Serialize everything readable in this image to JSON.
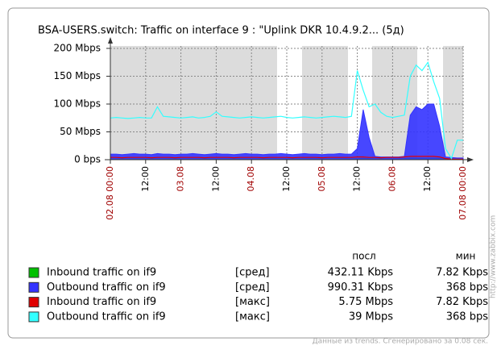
{
  "chart_data": {
    "type": "line",
    "title": "BSA-USERS.switch: Traffic on interface 9 : \"Uplink DKR 10.4.9.2... (5д)",
    "xlim": [
      0,
      120
    ],
    "xticks": [
      {
        "value": 0,
        "label": "02.08 00:00"
      },
      {
        "value": 12,
        "label": "12:00"
      },
      {
        "value": 24,
        "label": "03.08"
      },
      {
        "value": 36,
        "label": "12:00"
      },
      {
        "value": 48,
        "label": "04.08"
      },
      {
        "value": 60,
        "label": "12:00"
      },
      {
        "value": 72,
        "label": "05.08"
      },
      {
        "value": 84,
        "label": "12:00"
      },
      {
        "value": 96,
        "label": "06.08"
      },
      {
        "value": 108,
        "label": "12:00"
      },
      {
        "value": 120,
        "label": "07.08 00:00"
      }
    ],
    "ylim": [
      0,
      200
    ],
    "yticks": [
      {
        "value": 0,
        "label": "0 bps"
      },
      {
        "value": 50,
        "label": "50 Mbps"
      },
      {
        "value": 100,
        "label": "100 Mbps"
      },
      {
        "value": 150,
        "label": "150 Mbps"
      },
      {
        "value": 200,
        "label": "200 Mbps"
      }
    ],
    "grid": true,
    "x": [
      0,
      2,
      4,
      6,
      8,
      10,
      12,
      14,
      16,
      18,
      20,
      22,
      24,
      26,
      28,
      30,
      32,
      34,
      36,
      38,
      40,
      42,
      44,
      46,
      48,
      50,
      52,
      54,
      56,
      58,
      60,
      62,
      64,
      66,
      68,
      70,
      72,
      74,
      76,
      78,
      80,
      82,
      84,
      86,
      88,
      90,
      92,
      94,
      96,
      98,
      100,
      102,
      104,
      106,
      108,
      110,
      112,
      114,
      116,
      118,
      120
    ],
    "legend_headers": [
      "посл",
      "мин"
    ],
    "series": [
      {
        "name": "Inbound traffic on if9",
        "func": "[сред]",
        "last": "432.11 Kbps",
        "min": "7.82 Kbps",
        "color": "#00c000",
        "fill": true,
        "values": [
          1.5,
          1.5,
          1.4,
          1.5,
          1.6,
          1.5,
          1.5,
          1.4,
          1.5,
          1.5,
          1.6,
          1.5,
          1.5,
          1.4,
          1.5,
          1.5,
          1.6,
          1.5,
          1.5,
          1.4,
          1.5,
          1.5,
          1.6,
          1.5,
          1.5,
          1.4,
          1.5,
          1.5,
          1.6,
          1.5,
          1.5,
          1.4,
          1.5,
          1.5,
          1.6,
          1.5,
          1.5,
          1.4,
          1.5,
          1.5,
          1.6,
          1.5,
          2,
          2.5,
          2,
          1.5,
          1.5,
          1.4,
          1.5,
          1.5,
          2,
          3,
          3,
          3,
          3,
          3,
          2.5,
          1,
          0.8,
          0.5,
          0.5
        ]
      },
      {
        "name": "Outbound traffic on if9",
        "func": "[сред]",
        "last": "990.31 Kbps",
        "min": "368 bps",
        "color": "#3333ff",
        "fill": true,
        "values": [
          10,
          10,
          9,
          10,
          11,
          10,
          10,
          9,
          11,
          10,
          10,
          9,
          10,
          10,
          11,
          10,
          9,
          10,
          11,
          10,
          10,
          9,
          10,
          11,
          10,
          10,
          9,
          10,
          10,
          11,
          10,
          9,
          10,
          11,
          10,
          10,
          9,
          10,
          10,
          11,
          10,
          10,
          20,
          90,
          40,
          6,
          5,
          5,
          5,
          5,
          6,
          80,
          95,
          90,
          100,
          100,
          60,
          5,
          4,
          3,
          3
        ]
      },
      {
        "name": "Inbound traffic on if9",
        "func": "[макс]",
        "last": "5.75 Mbps",
        "min": "7.82 Kbps",
        "color": "#e00000",
        "fill": false,
        "values": [
          4,
          4,
          3.5,
          4,
          4,
          4,
          4,
          3.5,
          4,
          4,
          4,
          3.5,
          4,
          4,
          4,
          4,
          3.5,
          4,
          4,
          4,
          4,
          3.5,
          4,
          4,
          4,
          4,
          3.5,
          4,
          4,
          4,
          4,
          3.5,
          4,
          4,
          4,
          4,
          3.5,
          4,
          4,
          4,
          4,
          4,
          5,
          5,
          4,
          4,
          3.5,
          4,
          4,
          4,
          5,
          6,
          6,
          6,
          6,
          6,
          5,
          2,
          1,
          1,
          1
        ]
      },
      {
        "name": "Outbound traffic on if9",
        "func": "[макс]",
        "last": "39 Mbps",
        "min": "368 bps",
        "color": "#33ffff",
        "fill": false,
        "values": [
          75,
          76,
          75,
          74,
          75,
          76,
          75,
          75,
          95,
          78,
          77,
          76,
          75,
          76,
          77,
          75,
          76,
          78,
          86,
          78,
          77,
          76,
          75,
          76,
          77,
          76,
          75,
          76,
          77,
          78,
          76,
          75,
          76,
          77,
          76,
          75,
          76,
          77,
          78,
          77,
          76,
          78,
          160,
          125,
          95,
          100,
          85,
          78,
          76,
          78,
          80,
          150,
          170,
          160,
          175,
          140,
          110,
          20,
          2,
          35,
          35
        ]
      }
    ],
    "url": "http://www.zabbix.com",
    "footer": "Данные из trends. Сгенерировано за 0.08 сек."
  }
}
